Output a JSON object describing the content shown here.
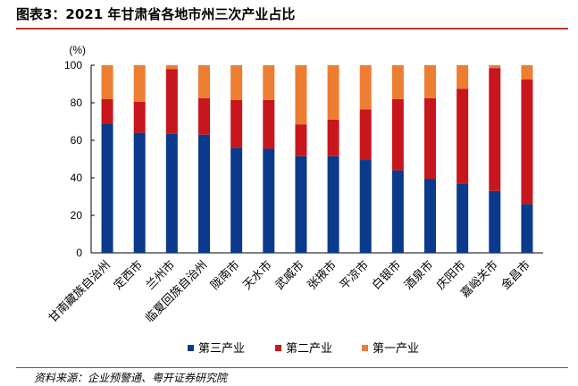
{
  "header": {
    "title": "图表3：2021 年甘肃省各地市州三次产业占比"
  },
  "source": "资料来源：企业预警通、粤开证券研究院",
  "chart_data": {
    "type": "bar",
    "stacked": true,
    "title": "图表3：2021 年甘肃省各地市州三次产业占比",
    "ylabel": "(%)",
    "ylim": [
      0,
      100
    ],
    "yticks": [
      0,
      20,
      40,
      60,
      80,
      100
    ],
    "categories": [
      "甘南藏族自治州",
      "定西市",
      "兰州市",
      "临夏回族自治州",
      "陇南市",
      "天水市",
      "武威市",
      "张掖市",
      "平凉市",
      "白银市",
      "酒泉市",
      "庆阳市",
      "嘉峪关市",
      "金昌市"
    ],
    "series": [
      {
        "name": "第三产业",
        "color": "#0b3a8c",
        "values": [
          69,
          64,
          63.5,
          63,
          56,
          55.5,
          51.5,
          51.5,
          49.5,
          44,
          39.5,
          37,
          33,
          26
        ]
      },
      {
        "name": "第二产业",
        "color": "#c8161d",
        "values": [
          13,
          16.5,
          34.5,
          19.5,
          25.5,
          26,
          17,
          19.5,
          27,
          38,
          43,
          50.5,
          65.5,
          66.5
        ]
      },
      {
        "name": "第一产业",
        "color": "#ed7d31",
        "values": [
          18,
          19.5,
          2,
          17.5,
          18.5,
          18.5,
          31.5,
          29,
          23.5,
          18,
          17.5,
          12.5,
          1.5,
          7.5
        ]
      }
    ],
    "legend_position": "bottom",
    "grid": false
  }
}
